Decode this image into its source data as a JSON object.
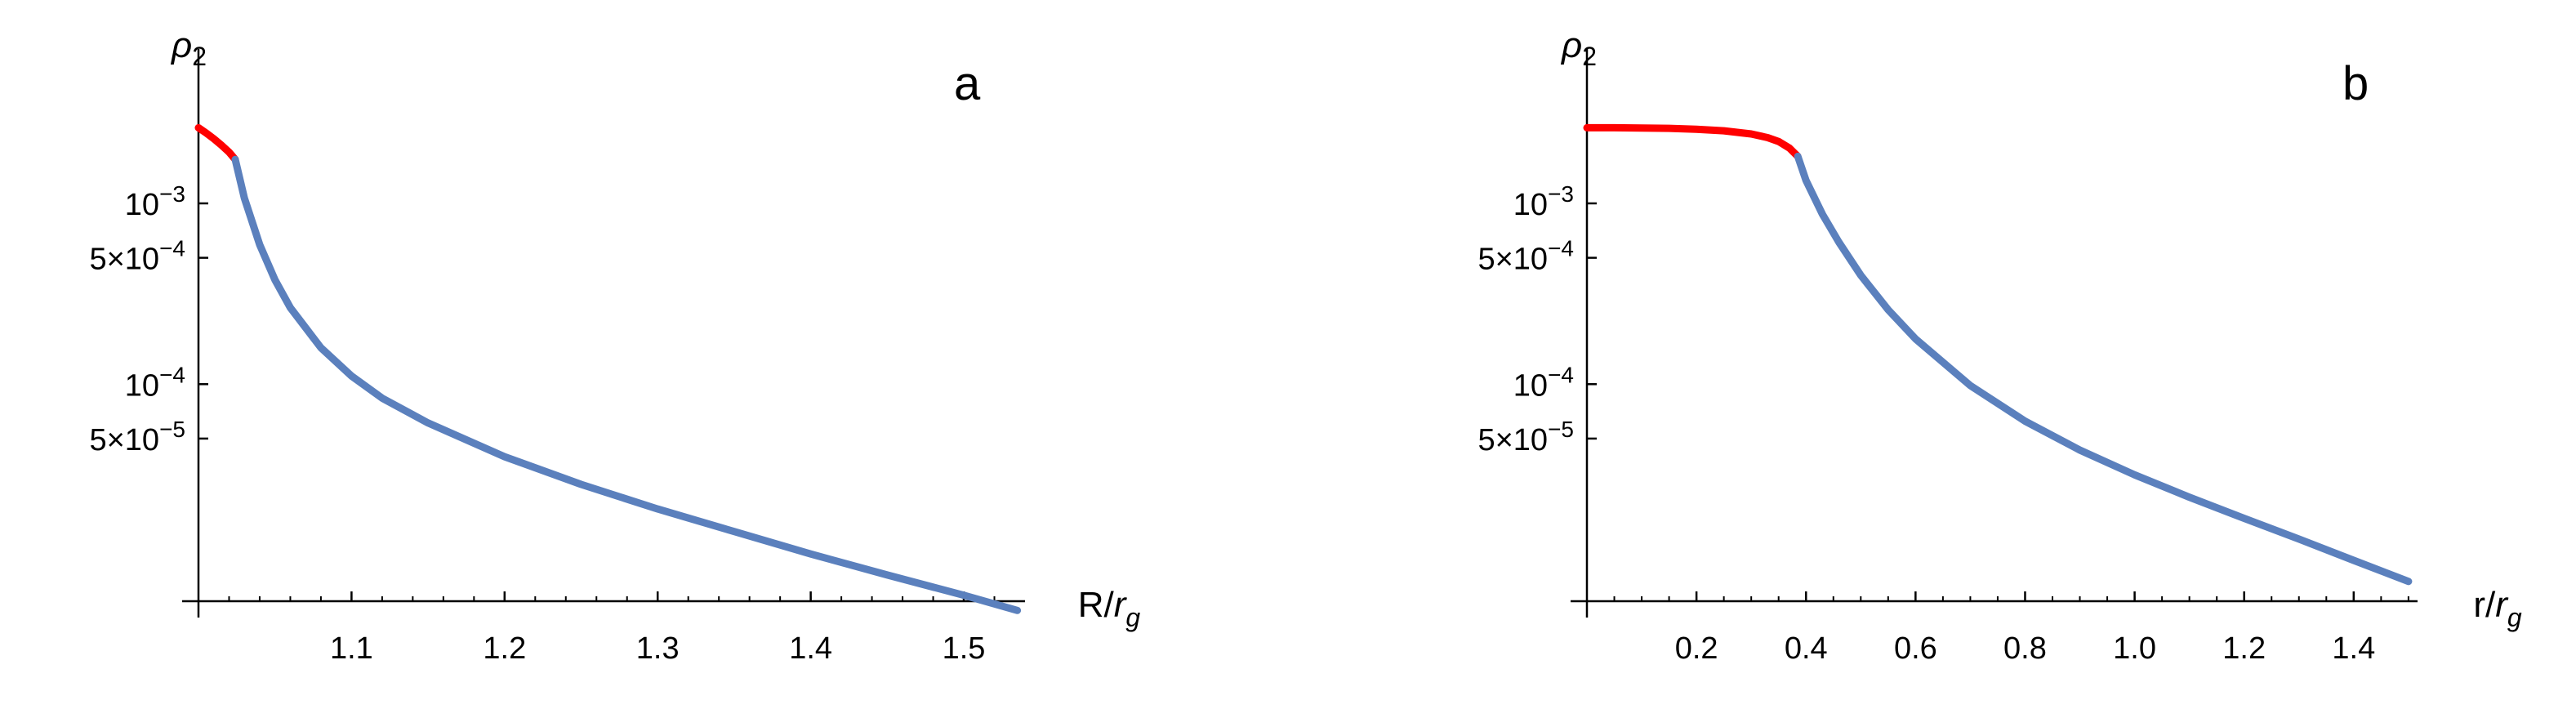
{
  "chart_data": [
    {
      "type": "line",
      "panel_label": "a",
      "xlabel": "R/r_g",
      "xlabel_main": "R/",
      "xlabel_italic": "r",
      "xlabel_sub": "g",
      "ylabel_base": "ρ",
      "ylabel_sub": "2",
      "yscale": "log",
      "xlim": [
        1.0,
        1.54
      ],
      "ylim_display": [
        6.3e-06,
        0.00295
      ],
      "x_ticks": [
        {
          "value": 1.1,
          "label": "1.1"
        },
        {
          "value": 1.2,
          "label": "1.2"
        },
        {
          "value": 1.3,
          "label": "1.3"
        },
        {
          "value": 1.4,
          "label": "1.4"
        },
        {
          "value": 1.5,
          "label": "1.5"
        }
      ],
      "x_minor_step": 0.02,
      "y_ticks": [
        {
          "value": 0.001,
          "mant": "10",
          "exp": "−3"
        },
        {
          "value": 0.0005,
          "mant": "5×10",
          "exp": "−4"
        },
        {
          "value": 0.0001,
          "mant": "10",
          "exp": "−4"
        },
        {
          "value": 5e-05,
          "mant": "5×10",
          "exp": "−5"
        }
      ],
      "series": [
        {
          "color": "#ff0000",
          "x": [
            1.0,
            1.005,
            1.01,
            1.015,
            1.02,
            1.024
          ],
          "y": [
            0.00262,
            0.00245,
            0.00228,
            0.0021,
            0.00192,
            0.00175
          ]
        },
        {
          "color": "#5b80bd",
          "x": [
            1.024,
            1.03,
            1.04,
            1.05,
            1.06,
            1.08,
            1.1,
            1.12,
            1.15,
            1.2,
            1.25,
            1.3,
            1.35,
            1.4,
            1.45,
            1.5,
            1.535
          ],
          "y": [
            0.00175,
            0.00107,
            0.00059,
            0.000377,
            0.000265,
            0.000159,
            0.000111,
            8.37e-05,
            6.1e-05,
            3.97e-05,
            2.79e-05,
            2.04e-05,
            1.53e-05,
            1.15e-05,
            8.8e-06,
            6.8e-06,
            5.6e-06
          ]
        }
      ]
    },
    {
      "type": "line",
      "panel_label": "b",
      "xlabel": "r/r_g",
      "xlabel_main": "r/",
      "xlabel_italic": "r",
      "xlabel_sub": "g",
      "ylabel_base": "ρ",
      "ylabel_sub": "2",
      "yscale": "log",
      "xlim": [
        0.0,
        1.53
      ],
      "ylim_display": [
        6.3e-06,
        0.00295
      ],
      "x_ticks": [
        {
          "value": 0.2,
          "label": "0.2"
        },
        {
          "value": 0.4,
          "label": "0.4"
        },
        {
          "value": 0.6,
          "label": "0.6"
        },
        {
          "value": 0.8,
          "label": "0.8"
        },
        {
          "value": 1.0,
          "label": "1.0"
        },
        {
          "value": 1.2,
          "label": "1.2"
        },
        {
          "value": 1.4,
          "label": "1.4"
        }
      ],
      "x_minor_step": 0.05,
      "y_ticks": [
        {
          "value": 0.001,
          "mant": "10",
          "exp": "−3"
        },
        {
          "value": 0.0005,
          "mant": "5×10",
          "exp": "−4"
        },
        {
          "value": 0.0001,
          "mant": "10",
          "exp": "−4"
        },
        {
          "value": 5e-05,
          "mant": "5×10",
          "exp": "−5"
        }
      ],
      "series": [
        {
          "color": "#ff0000",
          "x": [
            0.0,
            0.05,
            0.1,
            0.15,
            0.2,
            0.25,
            0.3,
            0.33,
            0.35,
            0.37,
            0.385
          ],
          "y": [
            0.00262,
            0.00262,
            0.00261,
            0.0026,
            0.00257,
            0.00252,
            0.00242,
            0.00231,
            0.0022,
            0.00202,
            0.00182
          ]
        },
        {
          "color": "#5b80bd",
          "x": [
            0.385,
            0.4,
            0.43,
            0.46,
            0.5,
            0.55,
            0.6,
            0.7,
            0.8,
            0.9,
            1.0,
            1.1,
            1.2,
            1.3,
            1.4,
            1.5
          ],
          "y": [
            0.00182,
            0.00134,
            0.00087,
            0.00061,
            0.0004,
            0.000258,
            0.000178,
            9.82e-05,
            6.24e-05,
            4.32e-05,
            3.15e-05,
            2.37e-05,
            1.81e-05,
            1.39e-05,
            1.06e-05,
            8.1e-06
          ]
        }
      ]
    }
  ]
}
